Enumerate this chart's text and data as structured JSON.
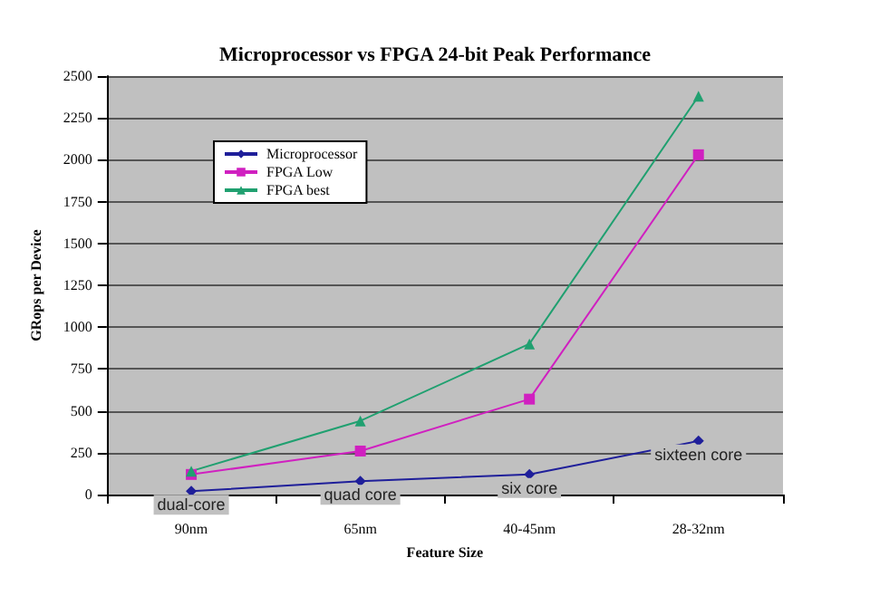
{
  "chart_data": {
    "type": "line",
    "title": "Microprocessor vs FPGA 24-bit Peak Performance",
    "xlabel": "Feature Size",
    "ylabel": "GRops per Device",
    "categories": [
      "90nm",
      "65nm",
      "40-45nm",
      "28-32nm"
    ],
    "series": [
      {
        "name": "Microprocessor",
        "color": "#1f1f9a",
        "values": [
          20,
          80,
          120,
          320
        ],
        "marker": "diamond"
      },
      {
        "name": "FPGA Low",
        "color": "#d020c0",
        "values": [
          120,
          260,
          570,
          2030
        ],
        "marker": "square"
      },
      {
        "name": "FPGA best",
        "color": "#20a070",
        "values": [
          140,
          440,
          900,
          2380
        ],
        "marker": "triangle"
      }
    ],
    "ylim": [
      0,
      2500
    ],
    "yticks": [
      0,
      250,
      500,
      750,
      1000,
      1250,
      1500,
      1750,
      2000,
      2250,
      2500
    ],
    "grid": "y",
    "legend": "top left",
    "annotations": [
      {
        "text": "dual-core",
        "x": "90nm",
        "y": 20
      },
      {
        "text": "quad core",
        "x": "65nm",
        "y": 80
      },
      {
        "text": "six core",
        "x": "40-45nm",
        "y": 120
      },
      {
        "text": "sixteen core",
        "x": "28-32nm",
        "y": 320
      }
    ]
  }
}
